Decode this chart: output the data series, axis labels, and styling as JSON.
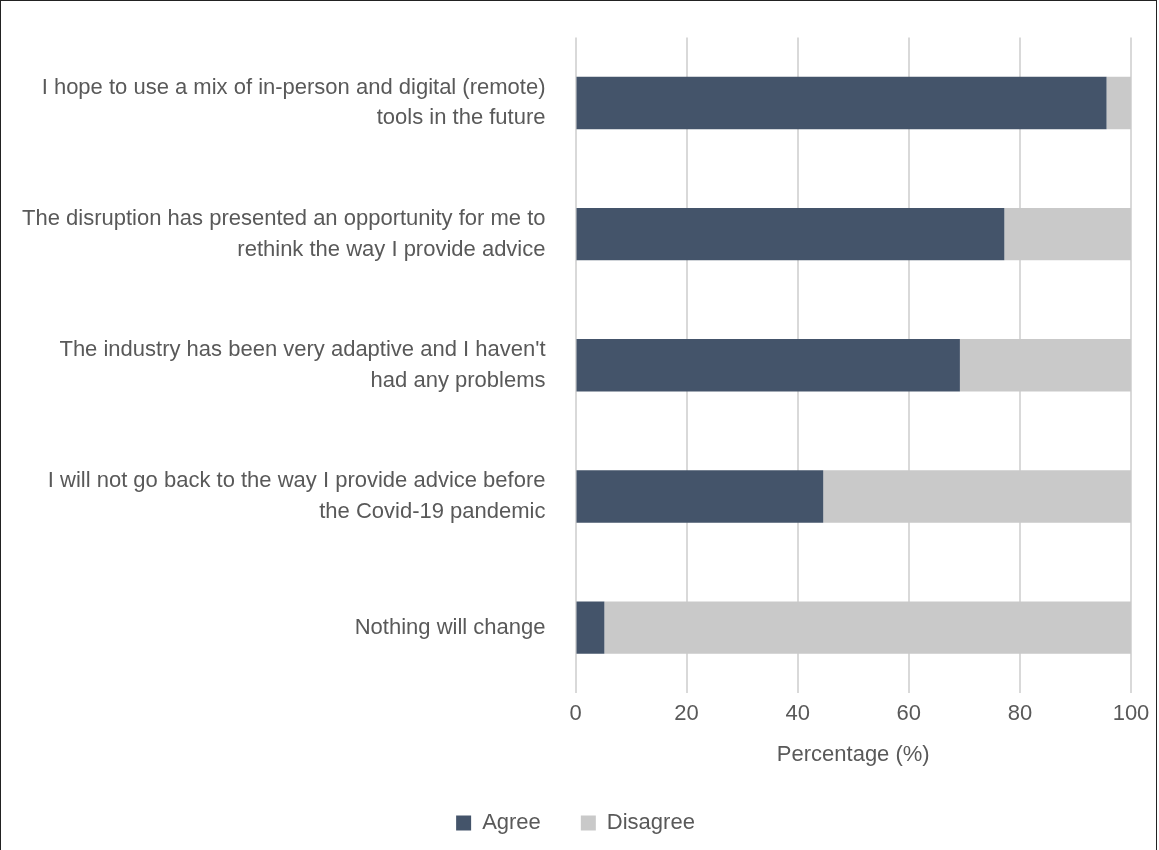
{
  "chart_data": {
    "type": "bar",
    "orientation": "horizontal",
    "stacked": true,
    "categories": [
      "I hope to use a mix of in-person and digital (remote) tools in the future",
      "The disruption has presented an opportunity for me to rethink the way I provide advice",
      "The industry has been very adaptive and I haven't had any problems",
      "I will not go back to the way I provide advice before the Covid-19 pandemic",
      "Nothing will change"
    ],
    "series": [
      {
        "name": "Agree",
        "color": "#44546a",
        "values": [
          95.6,
          77.2,
          69.2,
          44.6,
          5.2
        ]
      },
      {
        "name": "Disagree",
        "color": "#c9c9c9",
        "values": [
          4.4,
          22.8,
          30.8,
          55.4,
          94.8
        ]
      }
    ],
    "xlabel": "Percentage (%)",
    "xlim": [
      0,
      100
    ],
    "xticks": [
      0,
      20,
      40,
      60,
      80,
      100
    ],
    "grid": "x",
    "legend": "bottom"
  }
}
